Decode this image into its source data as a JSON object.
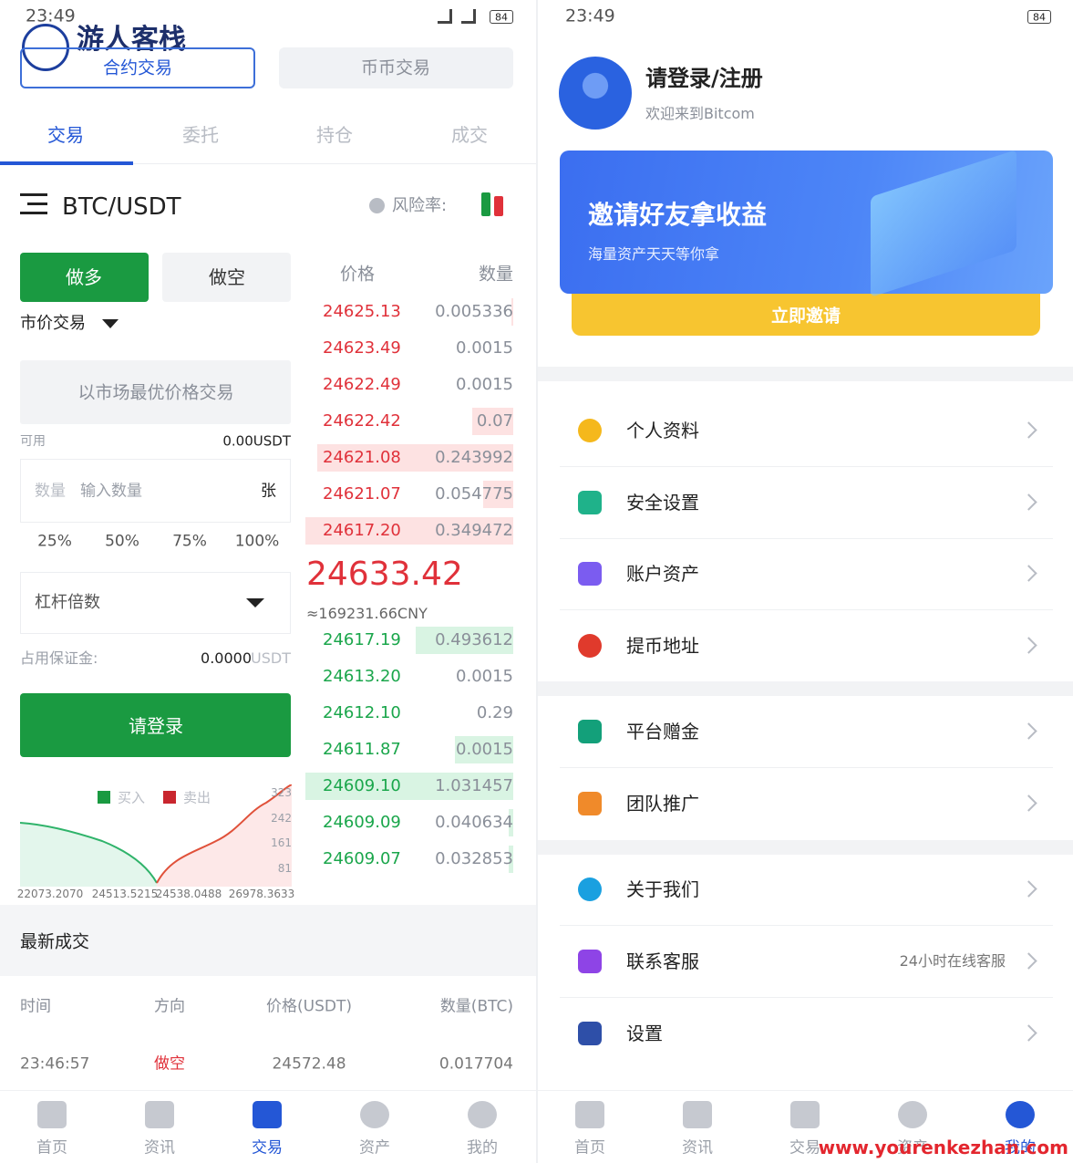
{
  "status_bar": {
    "time": "23:49",
    "battery": "84"
  },
  "watermark": {
    "logo": "游人客栈",
    "url": "www.yourenkezhan.com"
  },
  "trade_screen": {
    "mode_tabs": [
      "合约交易",
      "币币交易"
    ],
    "tabs": [
      "交易",
      "委托",
      "持仓",
      "成交"
    ],
    "pair": "BTC/USDT",
    "risk_label": "风险率:",
    "side_buttons": [
      "做多",
      "做空"
    ],
    "order_type": "市价交易",
    "price_placeholder": "以市场最优价格交易",
    "available_label": "可用",
    "available_value": "0.00USDT",
    "amount_label": "数量",
    "amount_placeholder": "输入数量",
    "amount_unit": "张",
    "percent_options": [
      "25%",
      "50%",
      "75%",
      "100%"
    ],
    "leverage_label": "杠杆倍数",
    "margin_label": "占用保证金:",
    "margin_value": "0.0000",
    "margin_unit": "USDT",
    "login_button": "请登录",
    "depth_chart": {
      "legend": [
        "买入",
        "卖出"
      ],
      "y_labels": [
        "323",
        "242",
        "161",
        "81"
      ],
      "x_labels": [
        "22073.2070",
        "24513.5215",
        "24538.0488",
        "26978.3633"
      ]
    },
    "order_book": {
      "headers": [
        "价格",
        "数量"
      ],
      "asks": [
        [
          "24625.13",
          "0.005336"
        ],
        [
          "24623.49",
          "0.0015"
        ],
        [
          "24622.49",
          "0.0015"
        ],
        [
          "24622.42",
          "0.07"
        ],
        [
          "24621.08",
          "0.243992"
        ],
        [
          "24621.07",
          "0.054775"
        ],
        [
          "24617.20",
          "0.349472"
        ]
      ],
      "last_price": "24633.42",
      "last_price_cny": "≈169231.66CNY",
      "bids": [
        [
          "24617.19",
          "0.493612"
        ],
        [
          "24613.20",
          "0.0015"
        ],
        [
          "24612.10",
          "0.29"
        ],
        [
          "24611.87",
          "0.0015"
        ],
        [
          "24609.10",
          "1.031457"
        ],
        [
          "24609.09",
          "0.040634"
        ],
        [
          "24609.07",
          "0.032853"
        ]
      ]
    },
    "recent_trades": {
      "title": "最新成交",
      "headers": [
        "时间",
        "方向",
        "价格(USDT)",
        "数量(BTC)"
      ],
      "rows": [
        [
          "23:46:57",
          "做空",
          "24572.48",
          "0.017704"
        ]
      ]
    }
  },
  "nav": [
    "首页",
    "资讯",
    "交易",
    "资产",
    "我的"
  ],
  "profile_screen": {
    "login": "请登录/注册",
    "welcome": "欢迎来到Bitcom",
    "banner": {
      "title": "邀请好友拿收益",
      "subtitle": "海量资产天天等你拿",
      "button": "立即邀请"
    },
    "menu": [
      {
        "label": "个人资料"
      },
      {
        "label": "安全设置"
      },
      {
        "label": "账户资产"
      },
      {
        "label": "提币地址"
      },
      {
        "label": "平台赠金"
      },
      {
        "label": "团队推广"
      },
      {
        "label": "关于我们"
      },
      {
        "label": "联系客服",
        "note": "24小时在线客服"
      },
      {
        "label": "设置"
      }
    ]
  }
}
